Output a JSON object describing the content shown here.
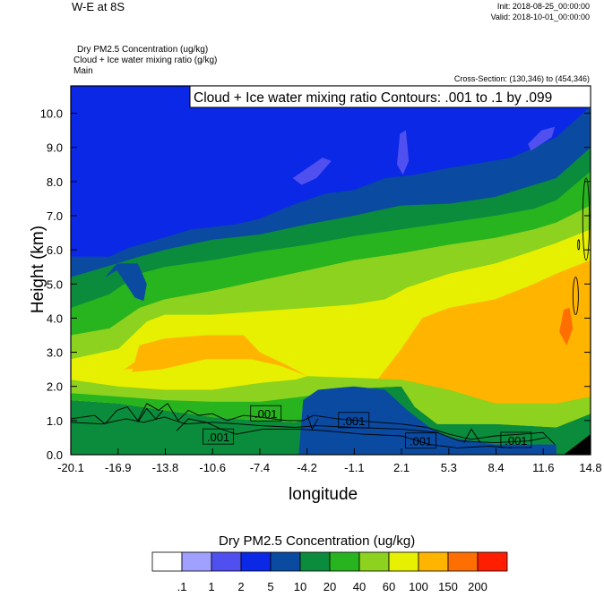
{
  "header": {
    "title": "W-E at 8S",
    "init": "Init: 2018-08-25_00:00:00",
    "valid": "Valid: 2018-10-01_00:00:00",
    "field1": "Dry PM2.5 Concentration   (ug/kg)",
    "field2": "Cloud + Ice water mixing ratio   (g/kg)",
    "field3": "Main",
    "cross_section": "Cross-Section: (130,346) to (454,346)"
  },
  "colorbar": {
    "title": "Dry PM2.5 Concentration  (ug/kg)",
    "colors": [
      "#ffffff",
      "#a0a0ff",
      "#5050f0",
      "#0a28e6",
      "#0a4aa0",
      "#0a8c3c",
      "#28b41e",
      "#8cd21e",
      "#e6f000",
      "#ffb400",
      "#ff6e00",
      "#ff1e00"
    ],
    "labels": [
      ".1",
      "1",
      "2",
      "5",
      "10",
      "20",
      "40",
      "60",
      "100",
      "150",
      "200"
    ]
  },
  "chart_data": {
    "type": "heatmap",
    "title": "W-E at 8S",
    "contour_legend": "Cloud + Ice water mixing ratio Contours: .001 to .1 by .099",
    "xlabel": "longitude",
    "ylabel": "Height (km)",
    "x_ticks": [
      "-20.1",
      "-16.9",
      "-13.8",
      "-10.6",
      "-7.4",
      "-4.2",
      "-1.1",
      "2.1",
      "5.3",
      "8.4",
      "11.6",
      "14.8"
    ],
    "y_ticks": [
      "0.0",
      "1.0",
      "2.0",
      "3.0",
      "4.0",
      "5.0",
      "6.0",
      "7.0",
      "8.0",
      "9.0",
      "10.0"
    ],
    "xlim": [
      -20.1,
      14.8
    ],
    "ylim": [
      0,
      10.8
    ],
    "contour_labels": [
      {
        "x": -10.2,
        "y": 0.52,
        "text": ".001"
      },
      {
        "x": -7.0,
        "y": 1.2,
        "text": ".001"
      },
      {
        "x": -1.1,
        "y": 1.0,
        "text": ".001"
      },
      {
        "x": 3.4,
        "y": 0.4,
        "text": ".001"
      },
      {
        "x": 9.8,
        "y": 0.42,
        "text": ".001"
      }
    ],
    "layers": [
      {
        "color": "#0a28e6",
        "top": [
          [
            -20.1,
            10.8
          ],
          [
            14.8,
            10.8
          ]
        ]
      },
      {
        "color": "#0a4aa0",
        "top": [
          [
            -20.1,
            5.8
          ],
          [
            -17.5,
            5.8
          ],
          [
            -16.3,
            6.05
          ],
          [
            -14.3,
            6.3
          ],
          [
            -12,
            6.6
          ],
          [
            -9,
            6.75
          ],
          [
            -7.5,
            6.9
          ],
          [
            -5,
            7.35
          ],
          [
            -3,
            7.65
          ],
          [
            -1.1,
            7.75
          ],
          [
            1,
            8.1
          ],
          [
            3,
            8.2
          ],
          [
            5.3,
            8.4
          ],
          [
            7.5,
            8.55
          ],
          [
            9.5,
            8.7
          ],
          [
            11,
            9.0
          ],
          [
            12.5,
            9.3
          ],
          [
            14.8,
            10.2
          ]
        ]
      },
      {
        "color": "#0a8c3c",
        "top": [
          [
            -20.1,
            5.2
          ],
          [
            -17,
            5.6
          ],
          [
            -15.5,
            5.8
          ],
          [
            -13.8,
            6.0
          ],
          [
            -10.6,
            6.3
          ],
          [
            -7.4,
            6.45
          ],
          [
            -4.2,
            6.75
          ],
          [
            -1.1,
            7.0
          ],
          [
            2.1,
            7.3
          ],
          [
            5.3,
            7.35
          ],
          [
            8.4,
            7.55
          ],
          [
            11,
            7.9
          ],
          [
            12.5,
            8.1
          ],
          [
            14.8,
            9.0
          ]
        ]
      },
      {
        "color": "#28b41e",
        "top": [
          [
            -20.1,
            4.3
          ],
          [
            -17.5,
            4.7
          ],
          [
            -15.5,
            5.3
          ],
          [
            -13.8,
            5.5
          ],
          [
            -10.6,
            5.7
          ],
          [
            -7.4,
            5.95
          ],
          [
            -4.2,
            6.15
          ],
          [
            -1.1,
            6.4
          ],
          [
            2.1,
            6.6
          ],
          [
            5.3,
            6.8
          ],
          [
            8.4,
            7.0
          ],
          [
            11,
            7.2
          ],
          [
            12.5,
            7.45
          ],
          [
            14.8,
            8.3
          ]
        ]
      },
      {
        "color": "#8cd21e",
        "top": [
          [
            -20.1,
            3.5
          ],
          [
            -17.5,
            3.7
          ],
          [
            -15.5,
            4.3
          ],
          [
            -13.8,
            4.55
          ],
          [
            -10.6,
            4.8
          ],
          [
            -7.4,
            5.1
          ],
          [
            -4.2,
            5.4
          ],
          [
            -1.1,
            5.7
          ],
          [
            2.1,
            5.9
          ],
          [
            5.3,
            6.15
          ],
          [
            8.4,
            6.35
          ],
          [
            11,
            6.6
          ],
          [
            12.5,
            6.8
          ],
          [
            14.8,
            7.3
          ]
        ]
      },
      {
        "color": "#e6f000",
        "top": [
          [
            -20.1,
            2.8
          ],
          [
            -16.9,
            3.1
          ],
          [
            -15,
            3.9
          ],
          [
            -13.8,
            4.1
          ],
          [
            -10.6,
            4.1
          ],
          [
            -7.4,
            4.2
          ],
          [
            -4.2,
            4.3
          ],
          [
            -1.1,
            4.4
          ],
          [
            1,
            4.55
          ],
          [
            2.5,
            4.9
          ],
          [
            5.3,
            5.3
          ],
          [
            8.4,
            5.6
          ],
          [
            10.5,
            5.9
          ],
          [
            12.5,
            6.2
          ],
          [
            14.8,
            6.6
          ]
        ]
      },
      {
        "color": "#ffb400",
        "top": [
          [
            -20.1,
            0.0
          ],
          [
            -16.2,
            2.1
          ],
          [
            -15.5,
            3.2
          ],
          [
            -13.8,
            3.4
          ],
          [
            -11,
            3.5
          ],
          [
            -8.5,
            3.5
          ],
          [
            -7.4,
            3.0
          ],
          [
            -5.5,
            2.6
          ],
          [
            -4.2,
            2.3
          ],
          [
            -2,
            2.2
          ],
          [
            0.5,
            2.2
          ],
          [
            2.1,
            3.1
          ],
          [
            3.5,
            4.0
          ],
          [
            5.3,
            4.3
          ],
          [
            8.4,
            4.55
          ],
          [
            11,
            5.0
          ],
          [
            12.5,
            5.3
          ],
          [
            14.8,
            5.7
          ]
        ]
      }
    ]
  }
}
